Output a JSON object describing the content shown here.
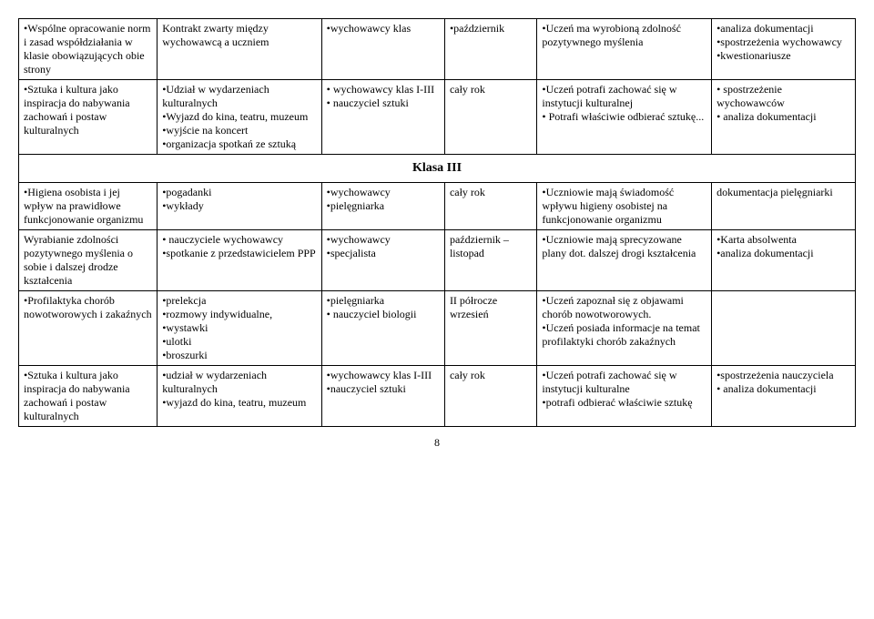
{
  "rows_top": [
    {
      "c1": "•Wspólne opracowanie norm i zasad współdziałania w klasie obowiązujących obie strony",
      "c2": "Kontrakt zwarty między wychowawcą a uczniem",
      "c3": "•wychowawcy klas",
      "c4": "•październik",
      "c5": "•Uczeń ma wyrobioną zdolność pozytywnego myślenia",
      "c6": "•analiza dokumentacji\n•spostrzeżenia wychowawcy\n•kwestionariusze"
    },
    {
      "c1": "•Sztuka i kultura jako inspiracja do nabywania zachowań i postaw kulturalnych",
      "c2": "•Udział w wydarzeniach kulturalnych\n•Wyjazd do kina, teatru, muzeum\n•wyjście na koncert\n•organizacja spotkań ze sztuką",
      "c3": "• wychowawcy klas I-III\n• nauczyciel sztuki",
      "c4": "cały rok",
      "c5": "•Uczeń potrafi zachować się w instytucji kulturalnej\n• Potrafi właściwie odbierać sztukę...",
      "c6": "• spostrzeżenie wychowawców\n• analiza dokumentacji"
    }
  ],
  "section_header": "Klasa III",
  "rows_bottom": [
    {
      "c1": "•Higiena osobista i jej wpływ na prawidłowe funkcjonowanie organizmu",
      "c2": "•pogadanki\n•wykłady",
      "c3": "•wychowawcy\n•pielęgniarka",
      "c4": "cały rok",
      "c5": "•Uczniowie mają świadomość wpływu higieny osobistej na funkcjonowanie organizmu",
      "c6": "dokumentacja pielęgniarki"
    },
    {
      "c1": "Wyrabianie zdolności pozytywnego myślenia o sobie i dalszej drodze kształcenia",
      "c2": "• nauczyciele wychowawcy\n•spotkanie z przedstawicielem PPP",
      "c3": "•wychowawcy\n•specjalista",
      "c4": "październik – listopad",
      "c5": "•Uczniowie mają sprecyzowane plany dot. dalszej drogi kształcenia",
      "c6": "•Karta absolwenta\n•analiza dokumentacji"
    },
    {
      "c1": "•Profilaktyka chorób nowotworowych i zakaźnych",
      "c2": "•prelekcja\n•rozmowy indywidualne,\n•wystawki\n•ulotki\n•broszurki",
      "c3": "•pielęgniarka\n• nauczyciel biologii",
      "c4": "II półrocze wrzesień",
      "c5": "•Uczeń zapoznał się z objawami chorób nowotworowych.\n•Uczeń posiada informacje na temat profilaktyki chorób zakaźnych",
      "c6": ""
    },
    {
      "c1": "•Sztuka i kultura jako inspiracja do nabywania zachowań i postaw kulturalnych",
      "c2": "•udział w wydarzeniach kulturalnych\n•wyjazd do kina, teatru, muzeum",
      "c3": "•wychowawcy klas I-III\n•nauczyciel sztuki",
      "c4": "cały rok",
      "c5": "•Uczeń potrafi zachować się w instytucji kulturalne\n•potrafi odbierać właściwie sztukę",
      "c6": "•spostrzeżenia nauczyciela\n• analiza dokumentacji"
    }
  ],
  "page_number": "8"
}
